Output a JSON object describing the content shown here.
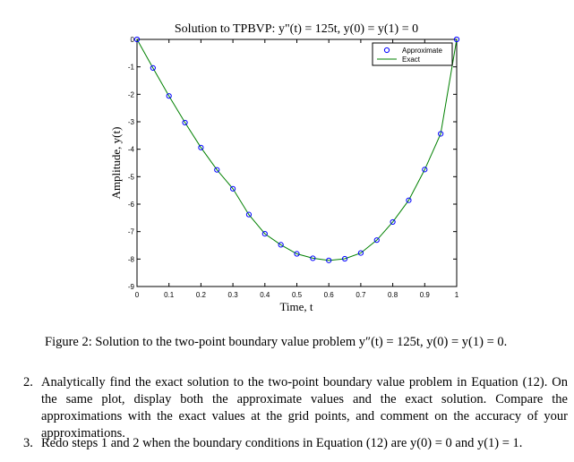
{
  "chart_data": {
    "type": "line",
    "title": "Solution to TPBVP: y\"(t) = 125t, y(0) = y(1) = 0",
    "xlabel": "Time, t",
    "ylabel": "Amplitude, y(t)",
    "xlim": [
      0,
      1
    ],
    "ylim": [
      -9,
      0
    ],
    "xticks": [
      "0",
      "0.1",
      "0.2",
      "0.3",
      "0.4",
      "0.5",
      "0.6",
      "0.7",
      "0.8",
      "0.9",
      "1"
    ],
    "yticks": [
      "0",
      "-1",
      "-2",
      "-3",
      "-4",
      "-5",
      "-6",
      "-7",
      "-8",
      "-9"
    ],
    "grid": false,
    "legend_position": "top-right",
    "series": [
      {
        "name": "Approximate",
        "style": "circle-markers",
        "color": "#0000ff",
        "x": [
          0,
          0.05,
          0.1,
          0.15,
          0.2,
          0.25,
          0.3,
          0.35,
          0.4,
          0.45,
          0.5,
          0.55,
          0.6,
          0.65,
          0.7,
          0.75,
          0.8,
          0.85,
          0.9,
          0.95,
          1
        ],
        "y": [
          0,
          -1.04,
          -2.06,
          -3.03,
          -3.94,
          -4.75,
          -5.44,
          -6.38,
          -7.08,
          -7.48,
          -7.81,
          -7.97,
          -8.05,
          -7.99,
          -7.78,
          -7.31,
          -6.65,
          -5.86,
          -4.74,
          -3.44,
          0
        ]
      },
      {
        "name": "Exact",
        "style": "solid-line",
        "color": "#008000",
        "x": [
          0,
          0.05,
          0.1,
          0.15,
          0.2,
          0.25,
          0.3,
          0.35,
          0.4,
          0.45,
          0.5,
          0.55,
          0.6,
          0.65,
          0.7,
          0.75,
          0.8,
          0.85,
          0.9,
          0.95,
          1
        ],
        "y": [
          0,
          -1.04,
          -2.06,
          -3.03,
          -3.94,
          -4.75,
          -5.44,
          -6.38,
          -7.08,
          -7.48,
          -7.81,
          -7.97,
          -8.05,
          -7.99,
          -7.78,
          -7.31,
          -6.65,
          -5.86,
          -4.74,
          -3.44,
          0
        ]
      }
    ]
  },
  "caption": "Figure 2: Solution to the two-point boundary value problem y″(t) = 125t, y(0) = y(1) = 0.",
  "items": [
    {
      "num": "2.",
      "text": "Analytically find the exact solution to the two-point boundary value problem in Equation (12). On the same plot, display both the approximate values and the exact solution. Compare the approximations with the exact values at the grid points, and comment on the accuracy of your approximations."
    },
    {
      "num": "3.",
      "text": "Redo steps 1 and 2 when the boundary conditions in Equation (12) are y(0) = 0 and y(1) = 1."
    }
  ]
}
